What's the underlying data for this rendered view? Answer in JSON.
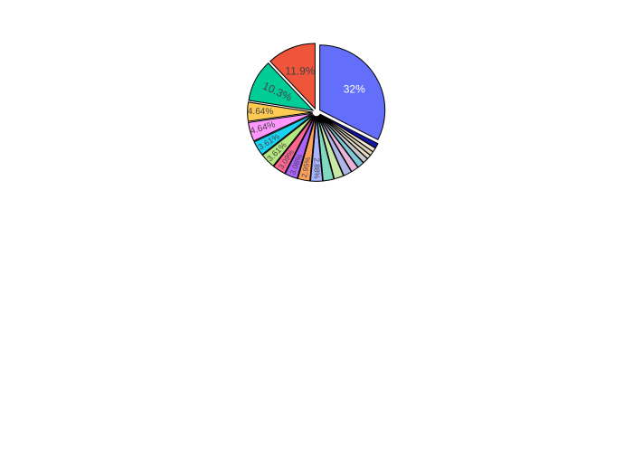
{
  "chart_data": {
    "type": "pie",
    "title": "",
    "legend": "none",
    "hole": 0,
    "values": [
      32,
      1.2,
      1.0,
      1.0,
      1.0,
      1.3,
      1.6,
      1.8,
      2.0,
      2.3,
      2.6,
      2.88,
      2.95,
      3.08,
      3.09,
      3.61,
      3.61,
      4.64,
      4.64,
      10.3,
      11.9
    ],
    "labels": [
      "32%",
      "",
      "",
      "",
      "",
      "",
      "",
      "",
      "",
      "",
      "",
      "2.88%",
      "2.95%",
      "3.08%",
      "3.09%",
      "3.61%",
      "3.61%",
      "4.64%",
      "4.64%",
      "10.3%",
      "11.9%"
    ],
    "pull": [
      0.06,
      0.06,
      0.06,
      0.06,
      0.06,
      0.06,
      0.06,
      0.06,
      0.06,
      0.06,
      0.06,
      0.06,
      0.06,
      0.06,
      0.06,
      0.06,
      0.06,
      0.06,
      0.06,
      0.06,
      0.06
    ],
    "colors": [
      "#636efa",
      "#1515a6",
      "#f0e6d2",
      "#d9d2b8",
      "#e8d9c4",
      "#c8c8c8",
      "#7fc8d8",
      "#e8b4d8",
      "#b0b4e8",
      "#c8e8a8",
      "#80d8c0",
      "#a8b4ff",
      "#ffa15a",
      "#ab63fa",
      "#ff6692",
      "#b6e880",
      "#19d3f3",
      "#ff97ff",
      "#fecb52",
      "#00cc96",
      "#ef553b"
    ],
    "label_colors": [
      "#ffffff",
      "#444444",
      "#444444",
      "#444444",
      "#444444",
      "#444444",
      "#444444",
      "#444444",
      "#444444",
      "#444444",
      "#444444",
      "#444444",
      "#444444",
      "#444444",
      "#444444",
      "#444444",
      "#444444",
      "#444444",
      "#444444",
      "#444444",
      "#444444"
    ],
    "outline_color": "#000000"
  }
}
